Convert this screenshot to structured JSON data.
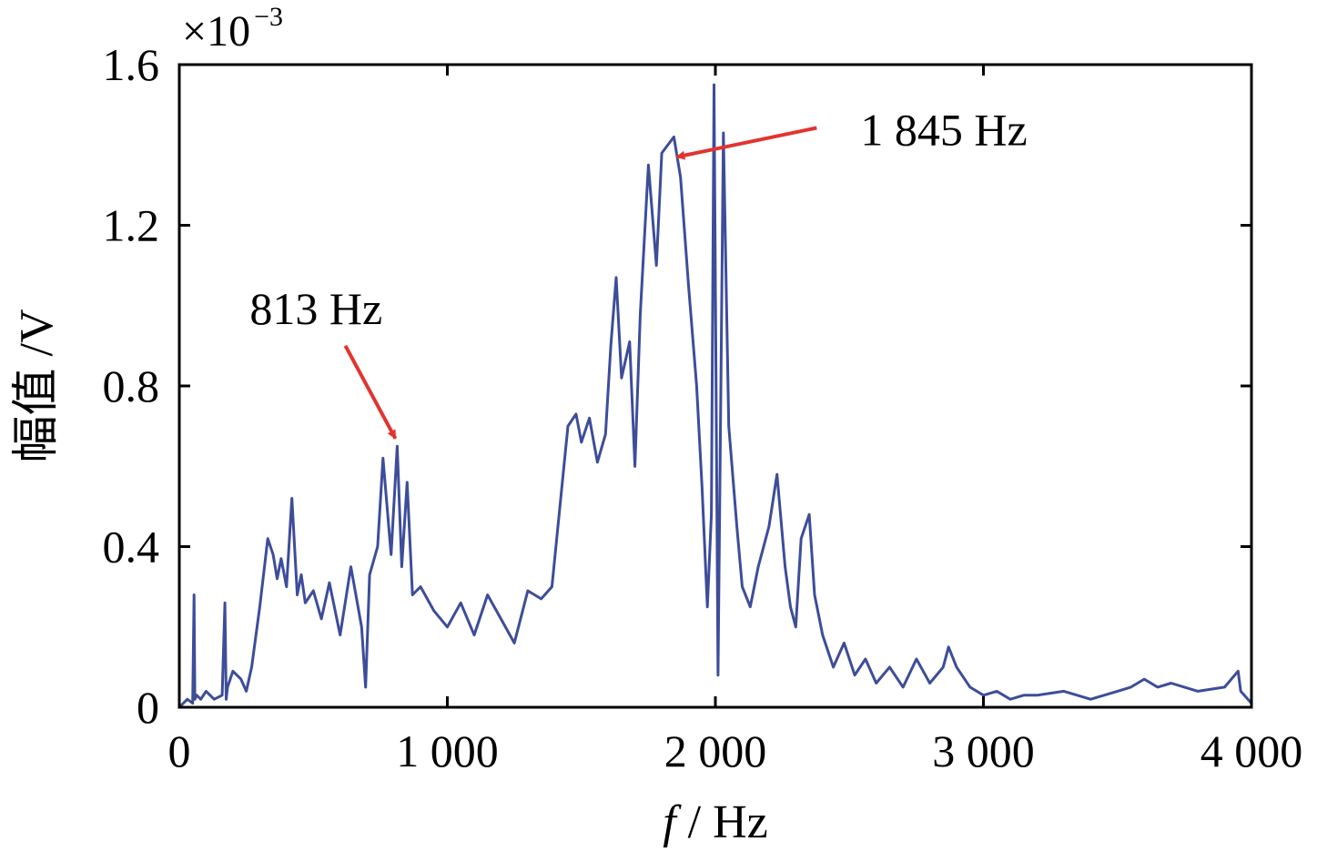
{
  "chart_data": {
    "type": "line",
    "xlabel_var": "f",
    "xlabel_unit": " / Hz",
    "ylabel": "幅值 /V",
    "y_scale_prefix": "×10",
    "y_scale_exponent": "−3",
    "xlim": [
      0,
      4000
    ],
    "ylim": [
      0,
      1.6
    ],
    "x_ticks": [
      0,
      1000,
      2000,
      3000,
      4000
    ],
    "x_tick_labels": [
      "0",
      "1 000",
      "2 000",
      "3 000",
      "4 000"
    ],
    "y_ticks": [
      0,
      0.4,
      0.8,
      1.2,
      1.6
    ],
    "y_tick_labels": [
      "0",
      "0.4",
      "0.8",
      "1.2",
      "1.6"
    ],
    "grid": false,
    "line_color": "#3d4d99",
    "annotation_color": "#e2342f",
    "annotations": [
      {
        "text": "813 Hz",
        "x": 813,
        "y": 0.66
      },
      {
        "text": "1 845 Hz",
        "x": 1845,
        "y": 1.37
      }
    ],
    "series": [
      {
        "x": [
          0,
          30,
          50,
          55,
          58,
          65,
          80,
          100,
          130,
          160,
          170,
          175,
          180,
          200,
          230,
          250,
          270,
          300,
          330,
          350,
          365,
          380,
          400,
          420,
          440,
          455,
          470,
          500,
          530,
          560,
          600,
          640,
          680,
          695,
          710,
          740,
          760,
          790,
          813,
          830,
          850,
          870,
          900,
          950,
          1000,
          1050,
          1100,
          1150,
          1200,
          1250,
          1300,
          1350,
          1390,
          1420,
          1450,
          1480,
          1500,
          1530,
          1560,
          1590,
          1610,
          1630,
          1650,
          1680,
          1700,
          1720,
          1750,
          1780,
          1800,
          1845,
          1870,
          1900,
          1930,
          1950,
          1970,
          1985,
          1995,
          2010,
          2030,
          2050,
          2080,
          2100,
          2130,
          2160,
          2200,
          2230,
          2260,
          2280,
          2300,
          2320,
          2350,
          2370,
          2400,
          2440,
          2480,
          2520,
          2560,
          2600,
          2650,
          2700,
          2750,
          2800,
          2850,
          2870,
          2900,
          2950,
          3000,
          3050,
          3100,
          3150,
          3200,
          3300,
          3400,
          3500,
          3550,
          3600,
          3650,
          3700,
          3800,
          3900,
          3950,
          3960,
          4000
        ],
        "y": [
          0.0,
          0.02,
          0.01,
          0.28,
          0.02,
          0.03,
          0.02,
          0.04,
          0.02,
          0.03,
          0.26,
          0.02,
          0.05,
          0.09,
          0.07,
          0.04,
          0.1,
          0.25,
          0.42,
          0.38,
          0.32,
          0.37,
          0.3,
          0.52,
          0.28,
          0.33,
          0.26,
          0.29,
          0.22,
          0.31,
          0.18,
          0.35,
          0.2,
          0.05,
          0.33,
          0.4,
          0.62,
          0.38,
          0.65,
          0.35,
          0.56,
          0.28,
          0.3,
          0.24,
          0.2,
          0.26,
          0.18,
          0.28,
          0.22,
          0.16,
          0.29,
          0.27,
          0.3,
          0.5,
          0.7,
          0.73,
          0.66,
          0.72,
          0.61,
          0.68,
          0.9,
          1.07,
          0.82,
          0.91,
          0.6,
          0.98,
          1.35,
          1.1,
          1.38,
          1.42,
          1.32,
          1.05,
          0.8,
          0.55,
          0.25,
          0.48,
          1.55,
          0.08,
          1.43,
          0.7,
          0.45,
          0.3,
          0.25,
          0.35,
          0.45,
          0.58,
          0.35,
          0.25,
          0.2,
          0.42,
          0.48,
          0.28,
          0.18,
          0.1,
          0.16,
          0.08,
          0.12,
          0.06,
          0.1,
          0.05,
          0.12,
          0.06,
          0.1,
          0.15,
          0.1,
          0.05,
          0.03,
          0.04,
          0.02,
          0.03,
          0.03,
          0.04,
          0.02,
          0.04,
          0.05,
          0.07,
          0.05,
          0.06,
          0.04,
          0.05,
          0.09,
          0.04,
          0.01
        ]
      }
    ]
  }
}
